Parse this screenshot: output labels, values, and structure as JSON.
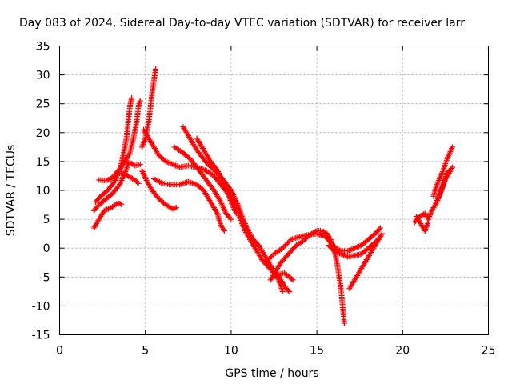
{
  "chart_data": {
    "type": "scatter",
    "title": "Day 083 of 2024, Sidereal Day-to-day VTEC variation (SDTVAR) for receiver larr",
    "xlabel": "GPS time / hours",
    "ylabel": "SDTVAR / TECUs",
    "xlim": [
      0,
      25
    ],
    "ylim": [
      -15,
      35
    ],
    "x_ticks": [
      "0",
      "5",
      "10",
      "15",
      "20",
      "25"
    ],
    "y_ticks": [
      "-15",
      "-10",
      "-5",
      "0",
      "5",
      "10",
      "15",
      "20",
      "25",
      "30",
      "35"
    ],
    "grid": true,
    "marker": "plus",
    "color": "#ff0000",
    "series": [
      {
        "points": [
          [
            2.0,
            3.5
          ],
          [
            2.3,
            5.0
          ],
          [
            2.6,
            6.5
          ],
          [
            3.0,
            7.0
          ],
          [
            3.4,
            7.8
          ],
          [
            3.6,
            7.6
          ]
        ]
      },
      {
        "points": [
          [
            2.0,
            6.5
          ],
          [
            2.3,
            7.5
          ],
          [
            2.7,
            8.5
          ],
          [
            3.1,
            9.5
          ],
          [
            3.5,
            11.0
          ],
          [
            3.8,
            13.0
          ],
          [
            4.0,
            14.5
          ]
        ]
      },
      {
        "points": [
          [
            2.1,
            8.0
          ],
          [
            2.4,
            9.0
          ],
          [
            2.8,
            10.0
          ],
          [
            3.2,
            11.5
          ],
          [
            3.5,
            13.5
          ],
          [
            3.7,
            16.0
          ],
          [
            3.9,
            19.0
          ],
          [
            4.0,
            22.0
          ],
          [
            4.1,
            24.5
          ],
          [
            4.2,
            26.0
          ]
        ]
      },
      {
        "points": [
          [
            2.3,
            11.8
          ],
          [
            2.7,
            11.7
          ],
          [
            3.0,
            12.0
          ],
          [
            3.3,
            13.0
          ],
          [
            3.6,
            14.0
          ],
          [
            3.8,
            15.0
          ],
          [
            4.1,
            16.5
          ],
          [
            4.3,
            19.0
          ],
          [
            4.5,
            22.0
          ],
          [
            4.6,
            24.5
          ],
          [
            4.7,
            25.5
          ]
        ]
      },
      {
        "points": [
          [
            3.5,
            13.0
          ],
          [
            3.8,
            12.8
          ],
          [
            4.1,
            12.3
          ],
          [
            4.4,
            11.8
          ],
          [
            4.6,
            11.2
          ]
        ]
      },
      {
        "points": [
          [
            3.8,
            15.0
          ],
          [
            4.1,
            14.8
          ],
          [
            4.4,
            14.3
          ],
          [
            4.7,
            14.5
          ]
        ]
      },
      {
        "points": [
          [
            4.8,
            17.5
          ],
          [
            5.0,
            19.0
          ],
          [
            5.2,
            22.0
          ],
          [
            5.3,
            24.5
          ],
          [
            5.4,
            27.0
          ],
          [
            5.5,
            29.0
          ],
          [
            5.6,
            31.0
          ]
        ]
      },
      {
        "points": [
          [
            4.9,
            20.5
          ],
          [
            5.1,
            19.5
          ],
          [
            5.4,
            18.0
          ],
          [
            5.8,
            16.0
          ],
          [
            6.2,
            15.0
          ],
          [
            6.6,
            14.5
          ],
          [
            7.0,
            14.0
          ],
          [
            7.5,
            14.3
          ],
          [
            8.0,
            14.0
          ],
          [
            8.5,
            13.5
          ],
          [
            9.0,
            12.5
          ],
          [
            9.4,
            11.0
          ],
          [
            9.8,
            9.5
          ],
          [
            10.0,
            8.0
          ],
          [
            10.3,
            6.0
          ]
        ]
      },
      {
        "points": [
          [
            4.8,
            13.5
          ],
          [
            5.1,
            11.5
          ],
          [
            5.4,
            10.0
          ],
          [
            5.8,
            8.5
          ],
          [
            6.2,
            7.5
          ],
          [
            6.6,
            6.8
          ],
          [
            6.8,
            7.0
          ]
        ]
      },
      {
        "points": [
          [
            5.5,
            12.0
          ],
          [
            6.0,
            11.2
          ],
          [
            6.5,
            11.0
          ],
          [
            7.0,
            11.0
          ],
          [
            7.5,
            11.5
          ],
          [
            8.0,
            11.0
          ],
          [
            8.4,
            10.0
          ],
          [
            8.8,
            8.0
          ],
          [
            9.2,
            6.0
          ],
          [
            9.4,
            4.0
          ],
          [
            9.6,
            3.0
          ]
        ]
      },
      {
        "points": [
          [
            6.7,
            17.5
          ],
          [
            7.2,
            16.5
          ],
          [
            7.6,
            15.5
          ],
          [
            8.0,
            14.0
          ],
          [
            8.5,
            12.0
          ],
          [
            9.0,
            10.0
          ],
          [
            9.4,
            8.0
          ],
          [
            9.7,
            6.0
          ],
          [
            10.0,
            5.0
          ]
        ]
      },
      {
        "points": [
          [
            7.2,
            21.0
          ],
          [
            7.6,
            19.0
          ],
          [
            8.0,
            17.0
          ],
          [
            8.5,
            15.0
          ],
          [
            9.0,
            13.5
          ],
          [
            9.5,
            12.0
          ],
          [
            10.0,
            10.0
          ],
          [
            10.4,
            7.5
          ],
          [
            10.7,
            5.0
          ],
          [
            11.0,
            3.0
          ],
          [
            11.3,
            1.5
          ],
          [
            11.6,
            0.5
          ],
          [
            11.9,
            -1.0
          ],
          [
            12.2,
            -2.5
          ],
          [
            12.5,
            -4.0
          ],
          [
            12.8,
            -5.0
          ],
          [
            13.0,
            -6.0
          ],
          [
            13.2,
            -7.0
          ],
          [
            13.4,
            -7.5
          ]
        ]
      },
      {
        "points": [
          [
            8.0,
            19.0
          ],
          [
            8.4,
            17.0
          ],
          [
            8.8,
            15.0
          ],
          [
            9.2,
            13.5
          ],
          [
            9.6,
            11.0
          ],
          [
            10.0,
            9.0
          ],
          [
            10.3,
            7.0
          ],
          [
            10.6,
            4.5
          ],
          [
            10.9,
            2.5
          ],
          [
            11.2,
            1.0
          ],
          [
            11.5,
            -0.5
          ],
          [
            11.8,
            -2.0
          ],
          [
            12.1,
            -3.0
          ],
          [
            12.4,
            -4.0
          ],
          [
            12.7,
            -5.0
          ],
          [
            12.9,
            -6.5
          ],
          [
            13.0,
            -7.5
          ]
        ]
      },
      {
        "points": [
          [
            12.3,
            -5.5
          ],
          [
            12.6,
            -4.0
          ],
          [
            12.9,
            -2.5
          ],
          [
            13.2,
            -1.5
          ],
          [
            13.5,
            -0.5
          ],
          [
            13.8,
            0.5
          ],
          [
            14.1,
            1.0
          ],
          [
            14.4,
            1.8
          ],
          [
            14.7,
            2.5
          ],
          [
            15.0,
            3.0
          ],
          [
            15.3,
            3.0
          ],
          [
            15.6,
            2.5
          ],
          [
            15.8,
            1.5
          ],
          [
            16.0,
            0.0
          ],
          [
            16.2,
            -3.0
          ],
          [
            16.4,
            -7.0
          ],
          [
            16.5,
            -10.0
          ],
          [
            16.6,
            -13.0
          ]
        ]
      },
      {
        "points": [
          [
            12.5,
            -5.0
          ],
          [
            12.8,
            -4.5
          ],
          [
            13.1,
            -4.3
          ],
          [
            13.4,
            -5.0
          ],
          [
            13.6,
            -5.5
          ]
        ]
      },
      {
        "points": [
          [
            12.0,
            -2.5
          ],
          [
            12.5,
            -1.0
          ],
          [
            13.0,
            0.0
          ],
          [
            13.5,
            1.5
          ],
          [
            14.0,
            2.0
          ],
          [
            14.5,
            2.3
          ],
          [
            15.0,
            2.5
          ],
          [
            15.5,
            2.0
          ],
          [
            15.8,
            1.0
          ],
          [
            16.1,
            0.0
          ],
          [
            16.4,
            -0.5
          ],
          [
            16.8,
            -0.5
          ],
          [
            17.2,
            0.0
          ],
          [
            17.6,
            0.5
          ],
          [
            18.0,
            1.5
          ],
          [
            18.4,
            2.5
          ],
          [
            18.7,
            3.5
          ]
        ]
      },
      {
        "points": [
          [
            15.7,
            0.5
          ],
          [
            16.0,
            -0.5
          ],
          [
            16.4,
            -1.0
          ],
          [
            16.8,
            -1.5
          ],
          [
            17.2,
            -1.3
          ],
          [
            17.6,
            -1.0
          ],
          [
            18.0,
            0.0
          ],
          [
            18.4,
            1.0
          ],
          [
            18.7,
            2.0
          ]
        ]
      },
      {
        "points": [
          [
            16.9,
            -7.0
          ],
          [
            17.2,
            -5.5
          ],
          [
            17.5,
            -4.0
          ],
          [
            17.8,
            -2.5
          ],
          [
            18.1,
            -1.0
          ],
          [
            18.4,
            0.5
          ],
          [
            18.7,
            2.0
          ],
          [
            18.8,
            2.5
          ]
        ]
      },
      {
        "points": [
          [
            20.7,
            4.5
          ],
          [
            21.0,
            5.5
          ],
          [
            21.3,
            6.0
          ],
          [
            21.5,
            5.0
          ],
          [
            21.7,
            6.5
          ],
          [
            22.0,
            8.0
          ],
          [
            22.3,
            10.5
          ],
          [
            22.6,
            13.0
          ],
          [
            22.9,
            14.0
          ]
        ]
      },
      {
        "points": [
          [
            20.8,
            5.5
          ],
          [
            21.1,
            4.0
          ],
          [
            21.3,
            3.0
          ],
          [
            21.5,
            4.5
          ]
        ]
      },
      {
        "points": [
          [
            21.8,
            9.0
          ],
          [
            22.0,
            11.0
          ],
          [
            22.3,
            13.0
          ],
          [
            22.6,
            15.5
          ],
          [
            22.9,
            17.5
          ]
        ]
      },
      {
        "points": [
          [
            21.9,
            7.5
          ],
          [
            22.2,
            9.5
          ],
          [
            22.5,
            12.0
          ],
          [
            22.8,
            13.5
          ]
        ]
      }
    ]
  }
}
